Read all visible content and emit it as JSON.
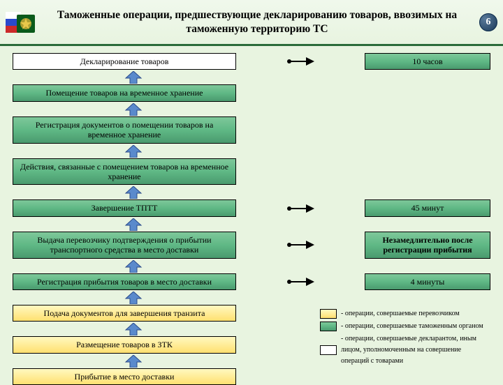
{
  "header": {
    "title": "Таможенные операции, предшествующие декларированию товаров, ввозимых на таможенную территорию ТС",
    "slide_number": "6"
  },
  "colors": {
    "white": "#ffffff",
    "green_top": "#7ec89a",
    "green_bot": "#4a9a6e",
    "yellow_top": "#fff9c0",
    "yellow_bot": "#ffe070",
    "arrow_fill": "#5a8acc",
    "arrow_stroke": "#2a4a8a",
    "border": "#000000",
    "page_bg": "#e8f4e0",
    "header_rule": "#2a6b3a"
  },
  "steps": [
    {
      "left": "Декларирование товаров",
      "left_color": "white",
      "right": "10 часов",
      "right_color": "green",
      "arrow_right": true,
      "arrow_up_after": true
    },
    {
      "left": "Помещение товаров на временное хранение",
      "left_color": "green",
      "arrow_up_after": true
    },
    {
      "left": "Регистрация документов о помещении товаров на временное хранение",
      "left_color": "green",
      "arrow_up_after": true
    },
    {
      "left": "Действия, связанные с помещением товаров на временное хранение",
      "left_color": "green",
      "arrow_up_after": true
    },
    {
      "left": "Завершение ТПТТ",
      "left_color": "green",
      "right": "45 минут",
      "right_color": "green",
      "arrow_right": true,
      "arrow_up_after": true
    },
    {
      "left": "Выдача перевозчику подтверждения о прибытии транспортного средства в место доставки",
      "left_color": "green",
      "right": "Незамедлительно после регистрации прибытия",
      "right_color": "green",
      "right_bold": true,
      "arrow_right": true,
      "arrow_up_after": true
    },
    {
      "left": "Регистрация прибытия товаров в место доставки",
      "left_color": "green",
      "right": "4 минуты",
      "right_color": "green",
      "arrow_right": true,
      "arrow_up_after": true
    },
    {
      "left": "Подача документов для завершения транзита",
      "left_color": "yellow",
      "arrow_up_after": true
    },
    {
      "left": "Размещение товаров в ЗТК",
      "left_color": "yellow",
      "arrow_up_after": true
    },
    {
      "left": "Прибытие в место доставки",
      "left_color": "yellow",
      "arrow_up_after": false
    }
  ],
  "legend": [
    {
      "swatch": "yellow",
      "text": "- операции, совершаемые перевозчиком"
    },
    {
      "swatch": "green",
      "text": "- операции, совершаемые таможенным органом"
    },
    {
      "swatch": "white",
      "text": "- операции, совершаемые декларантом, иным лицом, уполномоченным на совершение операций с товарами"
    }
  ]
}
